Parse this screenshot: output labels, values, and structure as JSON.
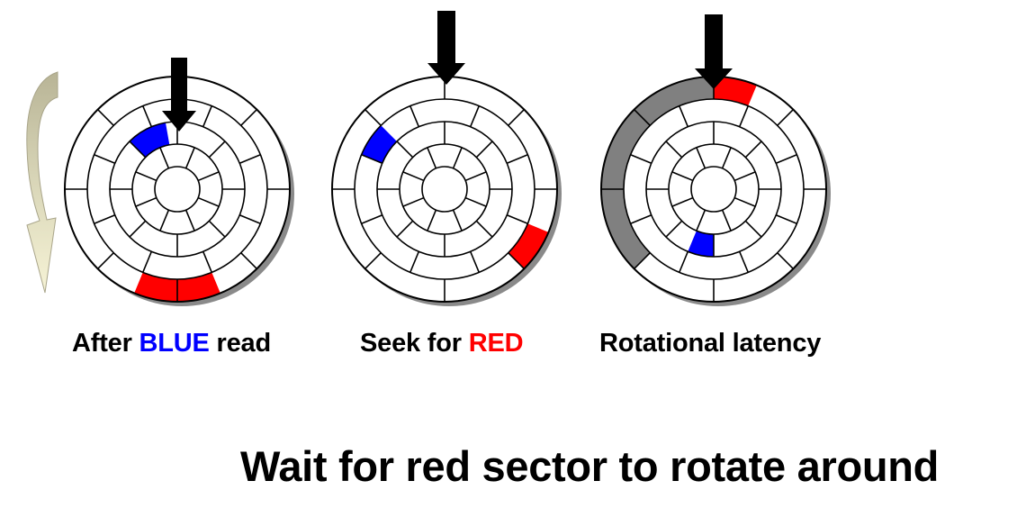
{
  "captions": {
    "after_prefix": "After ",
    "after_highlight": "BLUE",
    "after_suffix": " read",
    "seek_prefix": "Seek for ",
    "seek_highlight": "RED",
    "rotational": "Rotational latency"
  },
  "title": "Wait for red sector to rotate around",
  "colors": {
    "blue_sector": "#0000ff",
    "red_sector": "#ff0000",
    "latency_arc": "#808080",
    "arrow": "#000000",
    "rotation_arrow": "#ece8c4"
  },
  "icons": {
    "rotation": "curved-rotation-arrow-icon",
    "head": "down-arrow-icon"
  }
}
